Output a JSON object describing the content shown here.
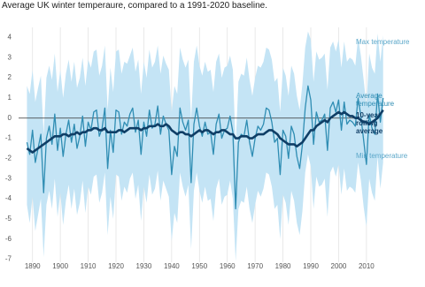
{
  "chart_data": {
    "type": "line",
    "title": "Average UK winter temperaure, compared to a 1991-2020 baseline.",
    "x": [
      1888,
      1889,
      1890,
      1891,
      1892,
      1893,
      1894,
      1895,
      1896,
      1897,
      1898,
      1899,
      1900,
      1901,
      1902,
      1903,
      1904,
      1905,
      1906,
      1907,
      1908,
      1909,
      1910,
      1911,
      1912,
      1913,
      1914,
      1915,
      1916,
      1917,
      1918,
      1919,
      1920,
      1921,
      1922,
      1923,
      1924,
      1925,
      1926,
      1927,
      1928,
      1929,
      1930,
      1931,
      1932,
      1933,
      1934,
      1935,
      1936,
      1937,
      1938,
      1939,
      1940,
      1941,
      1942,
      1943,
      1944,
      1945,
      1946,
      1947,
      1948,
      1949,
      1950,
      1951,
      1952,
      1953,
      1954,
      1955,
      1956,
      1957,
      1958,
      1959,
      1960,
      1961,
      1962,
      1963,
      1964,
      1965,
      1966,
      1967,
      1968,
      1969,
      1970,
      1971,
      1972,
      1973,
      1974,
      1975,
      1976,
      1977,
      1978,
      1979,
      1980,
      1981,
      1982,
      1983,
      1984,
      1985,
      1986,
      1987,
      1988,
      1989,
      1990,
      1991,
      1992,
      1993,
      1994,
      1995,
      1996,
      1997,
      1998,
      1999,
      2000,
      2001,
      2002,
      2003,
      2004,
      2005,
      2006,
      2007,
      2008,
      2009,
      2010,
      2011,
      2012,
      2013,
      2014,
      2015,
      2016
    ],
    "series": [
      {
        "name": "Max temperature",
        "color": "#c4e4f5",
        "values": [
          1.6,
          1.2,
          2.4,
          0.8,
          1.5,
          2.1,
          -0.8,
          2.0,
          2.6,
          1.9,
          3.2,
          1.3,
          2.4,
          1.0,
          2.2,
          2.9,
          1.8,
          2.8,
          1.5,
          2.0,
          3.0,
          1.6,
          2.9,
          2.5,
          3.3,
          3.4,
          2.1,
          2.6,
          3.6,
          0.4,
          2.5,
          1.3,
          3.3,
          3.4,
          2.2,
          2.8,
          2.7,
          3.1,
          3.5,
          2.3,
          2.9,
          1.2,
          2.8,
          2.0,
          3.4,
          2.5,
          2.8,
          3.6,
          2.2,
          3.1,
          2.7,
          2.4,
          0.3,
          1.6,
          1.2,
          3.5,
          2.9,
          2.5,
          2.9,
          -0.1,
          2.8,
          3.6,
          2.6,
          2.1,
          2.8,
          2.3,
          2.4,
          1.3,
          2.8,
          3.2,
          2.0,
          2.5,
          2.6,
          3.1,
          2.4,
          -1.4,
          1.8,
          2.2,
          2.1,
          3.0,
          1.9,
          1.1,
          2.0,
          2.6,
          2.5,
          2.8,
          3.5,
          3.4,
          2.9,
          1.8,
          2.0,
          0.3,
          2.5,
          2.1,
          1.1,
          2.6,
          2.2,
          1.1,
          0.4,
          1.7,
          3.5,
          4.3,
          3.9,
          1.8,
          3.3,
          2.9,
          3.0,
          3.2,
          1.4,
          3.5,
          3.8,
          3.3,
          3.9,
          2.5,
          3.8,
          2.8,
          3.0,
          2.9,
          2.6,
          4.0,
          3.1,
          1.9,
          0.6,
          3.2,
          2.5,
          2.2,
          4.2,
          2.8,
          4.1
        ]
      },
      {
        "name": "Average temperature",
        "color": "#2f8db3",
        "values": [
          -1.2,
          -1.8,
          -0.6,
          -2.2,
          -1.5,
          -0.8,
          -3.7,
          -1.0,
          -0.4,
          -1.3,
          0.2,
          -1.6,
          -0.5,
          -1.9,
          -0.8,
          -0.1,
          -1.2,
          -0.3,
          -1.5,
          -0.9,
          0.1,
          -1.4,
          -0.2,
          -0.6,
          0.3,
          0.4,
          -0.9,
          -0.5,
          0.5,
          -2.5,
          -0.6,
          -1.7,
          0.4,
          0.3,
          -0.8,
          -0.2,
          -0.4,
          0.2,
          0.5,
          -0.7,
          -0.1,
          -1.8,
          -0.2,
          -0.9,
          0.4,
          -0.5,
          -0.3,
          0.6,
          -0.8,
          0.1,
          -0.3,
          -0.6,
          -2.8,
          -1.4,
          -1.9,
          0.5,
          -0.2,
          -0.6,
          -0.1,
          -3.2,
          -0.3,
          0.5,
          -0.4,
          -0.9,
          -0.2,
          -0.8,
          -0.7,
          -1.8,
          -0.3,
          0.2,
          -1.0,
          -0.6,
          -0.5,
          0.1,
          -0.7,
          -4.5,
          -1.2,
          -0.8,
          -0.9,
          -0.1,
          -1.2,
          -1.9,
          -1.0,
          -0.4,
          -0.6,
          -0.3,
          0.5,
          0.4,
          -0.2,
          -1.2,
          -1.0,
          -2.8,
          -0.6,
          -0.9,
          -2.0,
          -0.4,
          -0.8,
          -1.9,
          -2.5,
          -1.3,
          0.5,
          1.6,
          0.9,
          -1.3,
          0.3,
          -0.2,
          -0.1,
          0.2,
          -1.6,
          0.5,
          0.8,
          0.3,
          0.9,
          -0.6,
          0.8,
          -0.3,
          -0.1,
          -0.2,
          -0.4,
          1.0,
          0.1,
          -1.1,
          -2.3,
          0.2,
          -0.5,
          -0.8,
          1.2,
          -0.2,
          1.0
        ]
      },
      {
        "name": "10-year rolling average",
        "color": "#0f3e66",
        "values": [
          -1.5,
          -1.6,
          -1.7,
          -1.6,
          -1.5,
          -1.4,
          -1.3,
          -1.2,
          -1.1,
          -1.0,
          -0.9,
          -0.9,
          -0.9,
          -0.8,
          -0.8,
          -0.9,
          -0.8,
          -0.8,
          -0.7,
          -0.8,
          -0.7,
          -0.7,
          -0.6,
          -0.6,
          -0.5,
          -0.5,
          -0.6,
          -0.6,
          -0.5,
          -0.7,
          -0.7,
          -0.7,
          -0.7,
          -0.6,
          -0.6,
          -0.7,
          -0.6,
          -0.5,
          -0.5,
          -0.5,
          -0.5,
          -0.6,
          -0.5,
          -0.5,
          -0.4,
          -0.4,
          -0.4,
          -0.3,
          -0.4,
          -0.4,
          -0.3,
          -0.4,
          -0.6,
          -0.7,
          -0.8,
          -0.7,
          -0.7,
          -0.8,
          -0.8,
          -0.9,
          -0.8,
          -0.7,
          -0.6,
          -0.7,
          -0.6,
          -0.6,
          -0.7,
          -0.8,
          -0.7,
          -0.7,
          -0.6,
          -0.6,
          -0.7,
          -0.8,
          -0.8,
          -1.0,
          -1.0,
          -0.9,
          -0.9,
          -0.9,
          -1.0,
          -1.0,
          -0.9,
          -0.8,
          -0.8,
          -0.8,
          -0.7,
          -0.6,
          -0.6,
          -0.7,
          -0.8,
          -1.0,
          -1.1,
          -1.2,
          -1.3,
          -1.3,
          -1.3,
          -1.4,
          -1.3,
          -1.2,
          -1.0,
          -0.8,
          -0.6,
          -0.6,
          -0.4,
          -0.3,
          -0.2,
          -0.1,
          -0.2,
          0.0,
          0.1,
          0.2,
          0.3,
          0.2,
          0.3,
          0.2,
          0.1,
          0.1,
          0.0,
          0.0,
          -0.1,
          -0.2,
          -0.2,
          -0.3,
          -0.2,
          -0.1,
          0.0,
          0.2,
          0.4
        ]
      },
      {
        "name": "Min temperature",
        "color": "#c4e4f5",
        "values": [
          -4.3,
          -5.2,
          -3.9,
          -5.6,
          -4.8,
          -4.0,
          -6.9,
          -4.3,
          -3.6,
          -4.5,
          -3.0,
          -4.9,
          -3.7,
          -5.3,
          -4.1,
          -3.3,
          -4.5,
          -3.5,
          -4.8,
          -4.2,
          -3.1,
          -4.7,
          -3.4,
          -3.8,
          -2.9,
          -2.8,
          -4.2,
          -3.7,
          -2.7,
          -5.8,
          -3.9,
          -5.0,
          -2.8,
          -2.9,
          -4.1,
          -3.4,
          -3.7,
          -3.0,
          -2.7,
          -4.0,
          -3.3,
          -5.1,
          -3.4,
          -4.2,
          -2.8,
          -3.8,
          -3.5,
          -2.6,
          -4.1,
          -3.1,
          -3.5,
          -3.9,
          -6.1,
          -4.7,
          -5.2,
          -2.7,
          -3.4,
          -3.9,
          -3.3,
          -6.5,
          -3.6,
          -2.7,
          -3.6,
          -4.2,
          -3.4,
          -4.1,
          -4.0,
          -5.1,
          -3.5,
          -3.0,
          -4.3,
          -3.9,
          -3.8,
          -3.1,
          -4.0,
          -7.1,
          -4.5,
          -4.1,
          -4.2,
          -3.4,
          -4.5,
          -5.2,
          -4.3,
          -3.6,
          -3.9,
          -3.5,
          -2.7,
          -2.8,
          -3.4,
          -4.5,
          -4.3,
          -6.0,
          -3.8,
          -4.2,
          -5.3,
          -3.6,
          -4.1,
          -5.2,
          -5.8,
          -4.6,
          -2.7,
          -1.8,
          -2.4,
          -4.5,
          -2.9,
          -3.4,
          -3.3,
          -3.0,
          -4.9,
          -2.7,
          -2.4,
          -2.9,
          -2.3,
          -3.8,
          -2.5,
          -3.6,
          -3.4,
          -3.5,
          -3.7,
          -2.2,
          -3.1,
          -4.4,
          -5.4,
          -3.0,
          -3.7,
          -4.1,
          -1.9,
          -3.5,
          -2.2
        ]
      }
    ],
    "xlim": [
      1885,
      2018
    ],
    "xticks": [
      1890,
      1900,
      1910,
      1920,
      1930,
      1940,
      1950,
      1960,
      1970,
      1980,
      1990,
      2000,
      2010
    ],
    "ylim": [
      -7.5,
      4.5
    ],
    "yticks": [
      -7,
      -6,
      -5,
      -4,
      -3,
      -2,
      -1,
      0,
      1,
      2,
      3,
      4
    ],
    "grid": "x",
    "zero_line": true
  }
}
